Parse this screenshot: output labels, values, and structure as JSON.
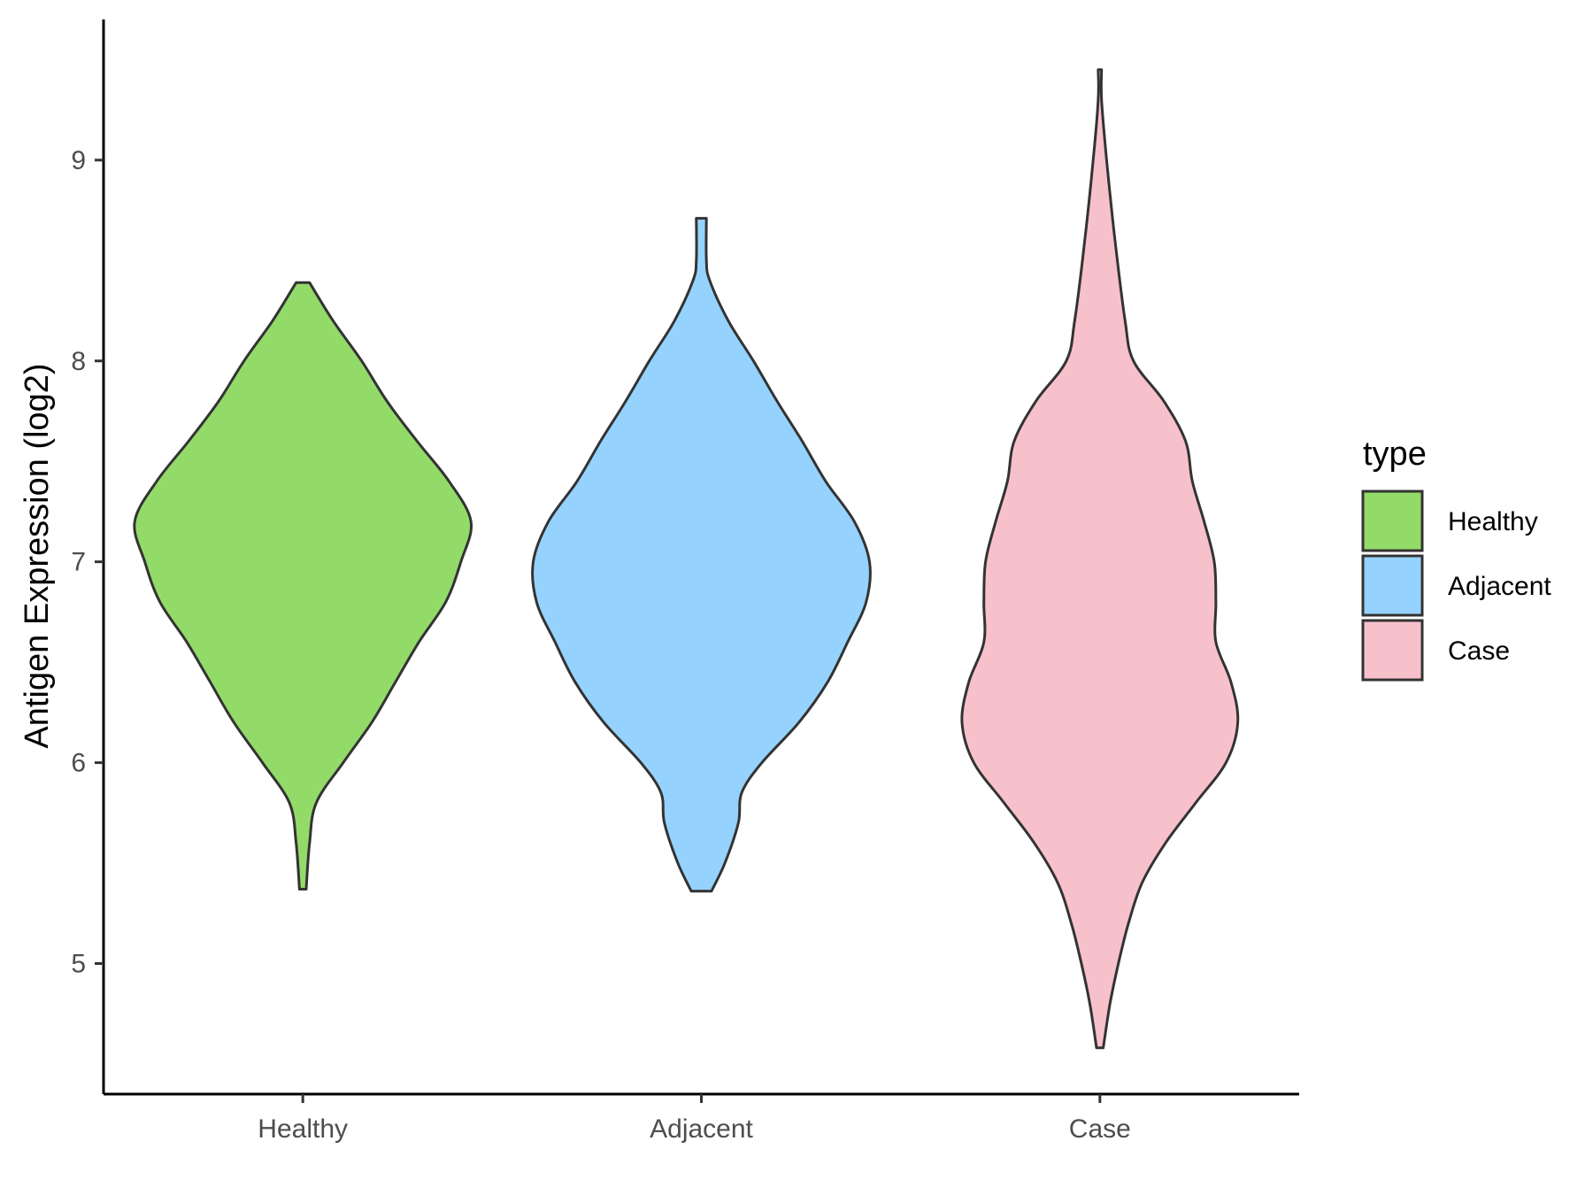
{
  "chart_data": {
    "type": "violin",
    "ylabel": "Antigen Expression (log2)",
    "xlabel": "",
    "ylim": [
      4.35,
      9.7
    ],
    "yticks": [
      5,
      6,
      7,
      8,
      9
    ],
    "categories": [
      "Healthy",
      "Adjacent",
      "Case"
    ],
    "legend": {
      "title": "type",
      "position": "right",
      "entries": [
        "Healthy",
        "Adjacent",
        "Case"
      ]
    },
    "grid": false,
    "series": [
      {
        "name": "Healthy",
        "color": "#93DB69",
        "min": 5.37,
        "max": 8.39,
        "density": [
          [
            5.37,
            0.02
          ],
          [
            5.6,
            0.04
          ],
          [
            5.8,
            0.08
          ],
          [
            6.0,
            0.24
          ],
          [
            6.2,
            0.41
          ],
          [
            6.4,
            0.55
          ],
          [
            6.6,
            0.69
          ],
          [
            6.8,
            0.85
          ],
          [
            7.0,
            0.94
          ],
          [
            7.2,
            1.0
          ],
          [
            7.4,
            0.87
          ],
          [
            7.6,
            0.68
          ],
          [
            7.8,
            0.5
          ],
          [
            8.0,
            0.35
          ],
          [
            8.2,
            0.18
          ],
          [
            8.39,
            0.04
          ]
        ]
      },
      {
        "name": "Adjacent",
        "color": "#95D3FE",
        "min": 5.36,
        "max": 8.71,
        "density": [
          [
            5.36,
            0.06
          ],
          [
            5.5,
            0.14
          ],
          [
            5.7,
            0.22
          ],
          [
            5.85,
            0.24
          ],
          [
            6.0,
            0.36
          ],
          [
            6.2,
            0.58
          ],
          [
            6.4,
            0.75
          ],
          [
            6.6,
            0.87
          ],
          [
            6.8,
            0.98
          ],
          [
            7.0,
            1.0
          ],
          [
            7.2,
            0.91
          ],
          [
            7.4,
            0.74
          ],
          [
            7.6,
            0.6
          ],
          [
            7.8,
            0.45
          ],
          [
            8.0,
            0.31
          ],
          [
            8.2,
            0.16
          ],
          [
            8.4,
            0.05
          ],
          [
            8.5,
            0.03
          ],
          [
            8.71,
            0.03
          ]
        ]
      },
      {
        "name": "Case",
        "color": "#F7C1CC",
        "min": 4.58,
        "max": 9.45,
        "density": [
          [
            4.58,
            0.02
          ],
          [
            4.8,
            0.06
          ],
          [
            5.0,
            0.11
          ],
          [
            5.2,
            0.17
          ],
          [
            5.4,
            0.25
          ],
          [
            5.6,
            0.39
          ],
          [
            5.8,
            0.57
          ],
          [
            6.0,
            0.75
          ],
          [
            6.2,
            0.82
          ],
          [
            6.4,
            0.78
          ],
          [
            6.6,
            0.69
          ],
          [
            6.8,
            0.69
          ],
          [
            7.0,
            0.68
          ],
          [
            7.2,
            0.62
          ],
          [
            7.4,
            0.55
          ],
          [
            7.6,
            0.51
          ],
          [
            7.8,
            0.38
          ],
          [
            8.0,
            0.2
          ],
          [
            8.2,
            0.15
          ],
          [
            8.6,
            0.09
          ],
          [
            9.0,
            0.04
          ],
          [
            9.3,
            0.01
          ],
          [
            9.45,
            0.01
          ]
        ]
      }
    ]
  }
}
